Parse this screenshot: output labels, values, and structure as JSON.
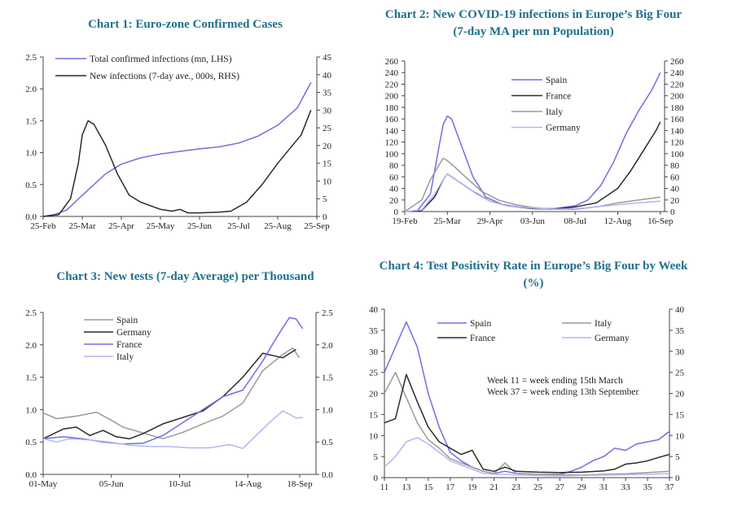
{
  "colors": {
    "title": "#1f6f8b",
    "spain": "#6d6ee6",
    "france": "#2b2b2b",
    "italy": "#9a9a9a",
    "germany": "#b0b8f2",
    "blue": "#6d6ee6",
    "black": "#2b2b2b"
  },
  "chart_data": [
    {
      "type": "line",
      "title": "Chart 1: Euro-zone Confirmed Cases",
      "left_axis": {
        "min": 0,
        "max": 2.5,
        "ticks": [
          "0.0",
          "0.5",
          "1.0",
          "1.5",
          "2.0",
          "2.5"
        ]
      },
      "right_axis": {
        "min": 0,
        "max": 45,
        "ticks": [
          "0",
          "5",
          "10",
          "15",
          "20",
          "25",
          "30",
          "35",
          "40",
          "45"
        ]
      },
      "x_ticks": [
        "25-Feb",
        "25-Mar",
        "25-Apr",
        "25-May",
        "25-Jun",
        "25-Jul",
        "25-Aug",
        "25-Sep"
      ],
      "x_range": [
        0,
        7
      ],
      "series": [
        {
          "name": "Total confirmed infections (mn, LHS)",
          "axis": "left",
          "color": "blue",
          "x": [
            0,
            0.3,
            0.6,
            1.0,
            1.3,
            1.6,
            2.0,
            2.5,
            3.0,
            3.5,
            4.0,
            4.5,
            5.0,
            5.5,
            6.0,
            6.5,
            6.85
          ],
          "y": [
            0,
            0.03,
            0.1,
            0.33,
            0.5,
            0.67,
            0.82,
            0.92,
            0.98,
            1.02,
            1.06,
            1.09,
            1.15,
            1.26,
            1.43,
            1.7,
            2.1
          ]
        },
        {
          "name": "New infections (7-day ave., 000s, RHS)",
          "axis": "right",
          "color": "black",
          "x": [
            0,
            0.4,
            0.7,
            0.9,
            1.0,
            1.15,
            1.3,
            1.6,
            1.9,
            2.2,
            2.5,
            3.0,
            3.3,
            3.5,
            3.7,
            4.0,
            4.5,
            4.8,
            5.2,
            5.6,
            6.0,
            6.3,
            6.6,
            6.85
          ],
          "y": [
            0,
            0.5,
            5,
            15,
            23,
            27,
            26,
            20,
            12,
            6,
            4,
            2,
            1.5,
            2,
            1,
            1,
            1.2,
            1.5,
            4,
            9,
            15,
            19,
            23,
            30
          ]
        }
      ]
    },
    {
      "type": "line",
      "title": "Chart 2: New COVID-19 infections in Europe's Big Four (7-day MA per mn Population)",
      "title_lines": [
        "Chart 2: New COVID-19 infections in Europe’s Big Four",
        "(7-day MA per mn Population)"
      ],
      "axis": {
        "min": 0,
        "max": 260,
        "ticks": [
          "0",
          "20",
          "40",
          "60",
          "80",
          "100",
          "120",
          "140",
          "160",
          "180",
          "200",
          "220",
          "240",
          "260"
        ]
      },
      "x_ticks": [
        "19-Feb",
        "25-Mar",
        "29-Apr",
        "03-Jun",
        "08-Jul",
        "12-Aug",
        "16-Sep"
      ],
      "x_range": [
        0,
        6.1
      ],
      "series": [
        {
          "name": "Spain",
          "color": "spain",
          "x": [
            0,
            0.3,
            0.6,
            0.8,
            0.9,
            1.0,
            1.1,
            1.3,
            1.6,
            1.9,
            2.3,
            2.7,
            3.0,
            3.5,
            4.0,
            4.3,
            4.6,
            4.9,
            5.2,
            5.5,
            5.8,
            6.0
          ],
          "y": [
            0,
            2,
            30,
            110,
            150,
            165,
            160,
            120,
            60,
            25,
            12,
            8,
            5,
            5,
            10,
            20,
            45,
            85,
            135,
            175,
            210,
            240
          ]
        },
        {
          "name": "France",
          "color": "france",
          "x": [
            0,
            0.4,
            0.7,
            0.9,
            1.0,
            1.1,
            1.3,
            1.6,
            2.0,
            2.4,
            3.0,
            3.5,
            4.0,
            4.5,
            5.0,
            5.3,
            5.6,
            5.9,
            6.0
          ],
          "y": [
            0,
            2,
            25,
            55,
            65,
            60,
            50,
            35,
            18,
            10,
            5,
            4,
            8,
            15,
            40,
            70,
            105,
            140,
            155
          ]
        },
        {
          "name": "Italy",
          "color": "italy",
          "x": [
            0,
            0.4,
            0.6,
            0.8,
            0.9,
            1.0,
            1.2,
            1.5,
            1.8,
            2.2,
            2.6,
            3.0,
            3.5,
            4.0,
            4.5,
            5.0,
            5.5,
            6.0
          ],
          "y": [
            0,
            20,
            55,
            80,
            92,
            88,
            75,
            55,
            35,
            20,
            12,
            7,
            4,
            4,
            8,
            15,
            20,
            25
          ]
        },
        {
          "name": "Germany",
          "color": "germany",
          "x": [
            0,
            0.4,
            0.7,
            0.9,
            1.0,
            1.1,
            1.4,
            1.7,
            2.0,
            2.4,
            3.0,
            3.5,
            4.0,
            4.5,
            5.0,
            5.5,
            6.0
          ],
          "y": [
            0,
            3,
            30,
            55,
            65,
            60,
            45,
            30,
            18,
            10,
            6,
            4,
            5,
            8,
            12,
            15,
            18
          ]
        }
      ]
    },
    {
      "type": "line",
      "title": "Chart 3: New tests (7-day Average) per Thousand",
      "axis": {
        "min": 0,
        "max": 2.5,
        "ticks": [
          "0.0",
          "0.5",
          "1.0",
          "1.5",
          "2.0",
          "2.5"
        ]
      },
      "x_ticks": [
        "01-May",
        "05-Jun",
        "10-Jul",
        "14-Aug",
        "18-Sep"
      ],
      "x_range": [
        0,
        4
      ],
      "series": [
        {
          "name": "Spain",
          "color": "italy",
          "x": [
            0,
            0.2,
            0.5,
            0.8,
            1.0,
            1.2,
            1.5,
            1.8,
            2.1,
            2.4,
            2.7,
            3.0,
            3.3,
            3.6,
            3.75,
            3.85
          ],
          "y": [
            0.95,
            0.86,
            0.9,
            0.96,
            0.85,
            0.73,
            0.64,
            0.55,
            0.65,
            0.78,
            0.9,
            1.1,
            1.6,
            1.85,
            1.95,
            1.8
          ]
        },
        {
          "name": "Germany",
          "color": "france",
          "x": [
            0,
            0.3,
            0.5,
            0.7,
            0.9,
            1.1,
            1.3,
            1.5,
            1.8,
            2.1,
            2.4,
            2.7,
            3.0,
            3.3,
            3.6,
            3.8
          ],
          "y": [
            0.55,
            0.7,
            0.73,
            0.6,
            0.68,
            0.58,
            0.55,
            0.63,
            0.78,
            0.88,
            0.98,
            1.2,
            1.5,
            1.87,
            1.8,
            1.93
          ]
        },
        {
          "name": "France",
          "color": "spain",
          "x": [
            0,
            0.3,
            0.6,
            0.9,
            1.2,
            1.5,
            1.8,
            2.1,
            2.4,
            2.7,
            3.0,
            3.3,
            3.5,
            3.7,
            3.8,
            3.9
          ],
          "y": [
            0.55,
            0.58,
            0.55,
            0.5,
            0.47,
            0.48,
            0.6,
            0.8,
            1.0,
            1.2,
            1.3,
            1.75,
            2.1,
            2.42,
            2.4,
            2.25
          ]
        },
        {
          "name": "Italy",
          "color": "germany",
          "x": [
            0,
            0.2,
            0.4,
            0.7,
            1.0,
            1.3,
            1.6,
            1.9,
            2.2,
            2.5,
            2.8,
            3.0,
            3.2,
            3.4,
            3.6,
            3.7,
            3.8,
            3.9
          ],
          "y": [
            0.55,
            0.5,
            0.55,
            0.53,
            0.5,
            0.45,
            0.43,
            0.43,
            0.41,
            0.41,
            0.46,
            0.4,
            0.6,
            0.8,
            0.98,
            0.93,
            0.87,
            0.88
          ]
        }
      ]
    },
    {
      "type": "line",
      "title": "Chart 4: Test Positivity Rate in Europe's Big Four by Week (%)",
      "title_lines": [
        "Chart 4: Test Positivity Rate in Europe’s Big Four by Week",
        "(%)"
      ],
      "axis": {
        "min": 0,
        "max": 40,
        "ticks": [
          "0",
          "5",
          "10",
          "15",
          "20",
          "25",
          "30",
          "35",
          "40"
        ]
      },
      "x_ticks": [
        "11",
        "13",
        "15",
        "17",
        "19",
        "21",
        "23",
        "25",
        "27",
        "29",
        "31",
        "33",
        "35",
        "37"
      ],
      "x_range": [
        11,
        37
      ],
      "annotation": [
        "Week 11 = week ending 15th March",
        "Week 37 = week ending 13th September"
      ],
      "series": [
        {
          "name": "Spain",
          "color": "spain",
          "x": [
            11,
            13,
            14,
            15,
            16,
            17,
            18,
            19,
            20,
            21,
            22,
            23,
            25,
            27,
            28,
            29,
            30,
            31,
            32,
            33,
            34,
            35,
            36,
            37
          ],
          "y": [
            25,
            37,
            31,
            20,
            12,
            6,
            4,
            2.5,
            1.5,
            1,
            1.5,
            1,
            0.8,
            0.8,
            1.5,
            2.5,
            4,
            5,
            7,
            6.5,
            8,
            8.5,
            9,
            11
          ]
        },
        {
          "name": "Italy",
          "color": "italy",
          "x": [
            11,
            12,
            13,
            14,
            15,
            16,
            17,
            18,
            19,
            20,
            21,
            22,
            23,
            25,
            27,
            29,
            31,
            33,
            35,
            37
          ],
          "y": [
            20,
            25,
            19,
            13,
            9,
            7,
            4.5,
            3.5,
            2.5,
            1.5,
            1,
            3.5,
            1,
            0.8,
            0.7,
            0.6,
            0.8,
            0.9,
            1.2,
            1.5
          ]
        },
        {
          "name": "France",
          "color": "france",
          "x": [
            11,
            12,
            13,
            14,
            15,
            16,
            17,
            18,
            19,
            20,
            21,
            22,
            23,
            25,
            27,
            29,
            31,
            32,
            33,
            34,
            35,
            36,
            37
          ],
          "y": [
            13,
            14,
            24.5,
            18,
            12,
            8.5,
            7,
            5.5,
            6.5,
            2,
            1.5,
            2.5,
            1.5,
            1.3,
            1.2,
            1.3,
            1.6,
            2,
            3.2,
            3.5,
            4,
            4.8,
            5.5
          ]
        },
        {
          "name": "Germany",
          "color": "germany",
          "x": [
            11,
            12,
            13,
            14,
            15,
            16,
            17,
            18,
            19,
            20,
            21,
            22,
            23,
            25,
            27,
            29,
            31,
            33,
            35,
            37
          ],
          "y": [
            2.5,
            5,
            8.5,
            9.5,
            8,
            6,
            4,
            3,
            2,
            1,
            0.8,
            0.8,
            0.6,
            0.5,
            0.4,
            0.5,
            0.6,
            0.7,
            0.8,
            0.9
          ]
        }
      ]
    }
  ]
}
